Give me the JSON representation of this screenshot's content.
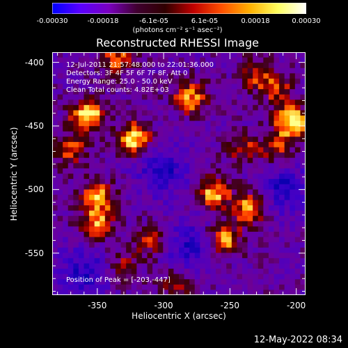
{
  "colorbar": {
    "ticks": [
      "-0.00030",
      "-0.00018",
      "-6.1e-05",
      "6.1e-05",
      "0.00018",
      "0.00030"
    ],
    "units_label": "(photons cm⁻² s⁻¹ asec⁻²)",
    "colors": [
      "#0000ff",
      "#5a00ff",
      "#7a00c0",
      "#400030",
      "#300000",
      "#c00000",
      "#ff5000",
      "#ffb000",
      "#ffff60",
      "#ffffff"
    ]
  },
  "title": "Reconstructed RHESSI Image",
  "annotations": {
    "time_range": "12-Jul-2011 21:57:48.000 to 22:01:36.000",
    "detectors": "Detectors: 3F 4F 5F 6F 7F 8F, Att 0",
    "energy_range": "Energy Range: 25.0 - 50.0 keV",
    "clean_counts": "Clean    Total counts: 4.82E+03",
    "peak_position": "Position of Peak = [-203,-447]"
  },
  "timestamp": "12-May-2022 08:34",
  "chart_data": {
    "type": "heatmap",
    "title": "Reconstructed RHESSI Image",
    "xlabel": "Heliocentric X (arcsec)",
    "ylabel": "Heliocentric Y (arcsec)",
    "xlim": [
      -384,
      -193
    ],
    "ylim": [
      -583,
      -392
    ],
    "x_ticks": [
      -350,
      -300,
      -250,
      -200
    ],
    "y_ticks": [
      -550,
      -500,
      -450,
      -400
    ],
    "x_tick_labels": [
      "-350",
      "-300",
      "-250",
      "-200"
    ],
    "y_tick_labels": [
      "-550",
      "-500",
      "-450",
      "-400"
    ],
    "colorbar_range": [
      -0.0003,
      0.0003
    ],
    "peak_position": [
      -203,
      -447
    ],
    "bright_regions": [
      {
        "x": -203,
        "y": -447,
        "level": 1.0
      },
      {
        "x": -357,
        "y": -442,
        "level": 0.95
      },
      {
        "x": -322,
        "y": -460,
        "level": 0.9
      },
      {
        "x": -280,
        "y": -428,
        "level": 0.75
      },
      {
        "x": -262,
        "y": -502,
        "level": 0.8
      },
      {
        "x": -235,
        "y": -515,
        "level": 0.85
      },
      {
        "x": -255,
        "y": -540,
        "level": 0.8
      },
      {
        "x": -350,
        "y": -505,
        "level": 0.8
      },
      {
        "x": -350,
        "y": -527,
        "level": 0.7
      },
      {
        "x": -335,
        "y": -398,
        "level": 0.6
      },
      {
        "x": -310,
        "y": -540,
        "level": 0.5
      },
      {
        "x": -370,
        "y": -470,
        "level": 0.55
      },
      {
        "x": -215,
        "y": -420,
        "level": 0.5
      },
      {
        "x": -215,
        "y": -468,
        "level": 0.5
      },
      {
        "x": -240,
        "y": -468,
        "level": 0.45
      },
      {
        "x": -290,
        "y": -575,
        "level": 0.45
      },
      {
        "x": -330,
        "y": -560,
        "level": 0.4
      },
      {
        "x": -230,
        "y": -410,
        "level": 0.45
      }
    ],
    "dark_regions": [
      {
        "x": -360,
        "y": -565
      },
      {
        "x": -210,
        "y": -500
      },
      {
        "x": -300,
        "y": -485
      },
      {
        "x": -280,
        "y": -545
      }
    ]
  }
}
